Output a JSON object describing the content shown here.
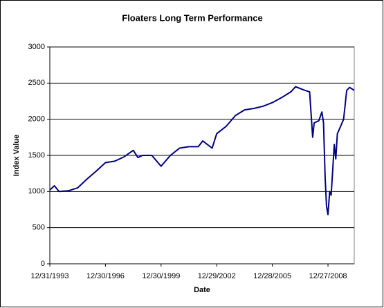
{
  "chart_data": {
    "type": "line",
    "title": "Floaters Long Term Performance",
    "xlabel": "Date",
    "ylabel": "Index Value",
    "x": [
      "12/31/1993",
      "3/31/1994",
      "6/30/1994",
      "12/30/1994",
      "6/30/1995",
      "12/29/1995",
      "6/28/1996",
      "12/30/1996",
      "6/30/1997",
      "12/31/1997",
      "6/30/1998",
      "9/30/1998",
      "12/31/1998",
      "6/30/1999",
      "12/30/1999",
      "6/30/2000",
      "12/29/2000",
      "6/29/2001",
      "12/31/2001",
      "3/28/2002",
      "9/30/2002",
      "12/29/2002",
      "6/30/2003",
      "12/31/2003",
      "6/30/2004",
      "12/31/2004",
      "6/30/2005",
      "12/28/2005",
      "6/30/2006",
      "12/29/2006",
      "3/30/2007",
      "9/28/2007",
      "12/31/2007",
      "2/29/2008",
      "3/31/2008",
      "6/30/2008",
      "8/29/2008",
      "9/30/2008",
      "10/31/2008",
      "11/28/2008",
      "12/27/2008",
      "1/30/2009",
      "2/27/2009",
      "3/31/2009",
      "4/30/2009",
      "5/29/2009",
      "6/30/2009",
      "8/31/2009",
      "10/30/2009",
      "12/31/2009",
      "2/26/2010",
      "5/28/2010"
    ],
    "series": [
      {
        "name": "Index Value",
        "color": "#000080",
        "values": [
          1020,
          1080,
          1000,
          1010,
          1050,
          1170,
          1280,
          1400,
          1420,
          1480,
          1570,
          1470,
          1500,
          1500,
          1350,
          1500,
          1600,
          1620,
          1620,
          1700,
          1600,
          1800,
          1900,
          2050,
          2130,
          2150,
          2180,
          2230,
          2300,
          2380,
          2450,
          2400,
          2380,
          1750,
          1950,
          1980,
          2100,
          1950,
          1200,
          800,
          680,
          1000,
          950,
          1300,
          1650,
          1450,
          1800,
          1900,
          2000,
          2400,
          2440,
          2400
        ]
      }
    ],
    "xlim": [
      "12/31/1993",
      "5/28/2010"
    ],
    "xticks": [
      "12/31/1993",
      "12/30/1996",
      "12/30/1999",
      "12/29/2002",
      "12/28/2005",
      "12/27/2008"
    ],
    "ylim": [
      0,
      3000
    ],
    "yticks": [
      0,
      500,
      1000,
      1500,
      2000,
      2500,
      3000
    ],
    "grid": true
  }
}
